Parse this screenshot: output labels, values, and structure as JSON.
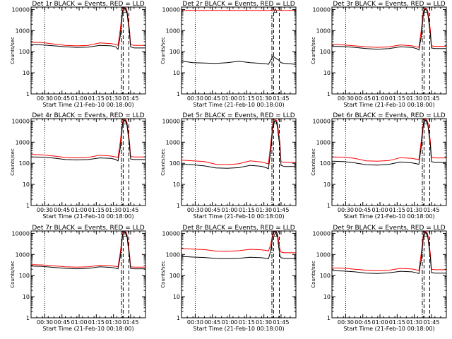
{
  "figure": {
    "ylabel": "Counts/sec",
    "xlabel": "Start Time (21-Feb-10 00:18:00)",
    "x_tick_labels": [
      "00:30",
      "00:45",
      "01:00",
      "01:15",
      "01:30",
      "01:45"
    ],
    "y_tick_labels": [
      "1",
      "10",
      "100",
      "1000",
      "10000"
    ],
    "colors": {
      "events": "#000000",
      "lld": "#ff0000",
      "axes": "#000000"
    }
  },
  "chart_data": [
    {
      "type": "line",
      "title": "Det 1r BLACK = Events, RED = LLD",
      "x_unit": "minutes since 00:18:00",
      "xlim": [
        0,
        100
      ],
      "ylim": [
        1,
        13000
      ],
      "yscale": "log",
      "grid": false,
      "markers": {
        "dotted": 12,
        "dash_dot": 79,
        "dashed": [
          80.5,
          85.5
        ]
      },
      "series": [
        {
          "name": "Events",
          "color": "#000000",
          "x": [
            0,
            10,
            20,
            30,
            40,
            50,
            60,
            70,
            74,
            76,
            78,
            79,
            80,
            81,
            82,
            83,
            84,
            85,
            86,
            87,
            90,
            100
          ],
          "y": [
            220,
            210,
            190,
            170,
            160,
            165,
            200,
            190,
            170,
            130,
            600,
            2000,
            8000,
            11500,
            11500,
            10500,
            6000,
            2000,
            800,
            170,
            150,
            150
          ]
        },
        {
          "name": "LLD",
          "color": "#ff0000",
          "x": [
            0,
            10,
            20,
            30,
            40,
            50,
            60,
            70,
            74,
            76,
            78,
            79,
            80,
            81,
            82,
            83,
            84,
            85,
            86,
            87,
            90,
            100
          ],
          "y": [
            280,
            270,
            230,
            200,
            190,
            200,
            260,
            240,
            220,
            200,
            1200,
            3500,
            9500,
            12000,
            12000,
            11500,
            8000,
            3000,
            1200,
            220,
            200,
            200
          ]
        }
      ]
    },
    {
      "type": "line",
      "title": "Det 2r BLACK = Events, RED = LLD",
      "x_unit": "minutes since 00:18:00",
      "xlim": [
        0,
        100
      ],
      "ylim": [
        1,
        13000
      ],
      "yscale": "log",
      "grid": false,
      "markers": {
        "dotted": 12,
        "dash_dot": 79,
        "dashed": [
          80.5,
          85.5
        ]
      },
      "series": [
        {
          "name": "Events",
          "color": "#000000",
          "x": [
            0,
            5,
            10,
            20,
            30,
            40,
            50,
            60,
            70,
            74,
            76,
            78,
            80,
            85,
            87,
            90,
            95,
            100
          ],
          "y": [
            36,
            33,
            30,
            29,
            28,
            30,
            35,
            30,
            28,
            27,
            25,
            40,
            60,
            40,
            30,
            28,
            27,
            25
          ]
        },
        {
          "name": "LLD",
          "color": "#ff0000",
          "x": [
            0,
            10,
            20,
            30,
            40,
            50,
            60,
            70,
            74,
            76,
            78,
            80,
            85,
            87,
            90,
            100
          ],
          "y": [
            9000,
            9000,
            9000,
            9000,
            9000,
            9000,
            9000,
            9000,
            9000,
            9000,
            9200,
            9500,
            9200,
            9000,
            9000,
            9000
          ]
        }
      ]
    },
    {
      "type": "line",
      "title": "Det 3r BLACK = Events, RED = LLD",
      "x_unit": "minutes since 00:18:00",
      "xlim": [
        0,
        100
      ],
      "ylim": [
        1,
        13000
      ],
      "yscale": "log",
      "grid": false,
      "markers": {
        "dotted": 12,
        "dash_dot": 79,
        "dashed": [
          80.5,
          85.5
        ]
      },
      "series": [
        {
          "name": "Events",
          "color": "#000000",
          "x": [
            0,
            10,
            20,
            30,
            40,
            50,
            60,
            70,
            74,
            76,
            78,
            79,
            80,
            81,
            82,
            83,
            84,
            85,
            86,
            87,
            90,
            100
          ],
          "y": [
            180,
            175,
            160,
            140,
            130,
            140,
            170,
            160,
            140,
            120,
            500,
            1800,
            7000,
            10000,
            10000,
            9000,
            5000,
            1800,
            700,
            150,
            140,
            140
          ]
        },
        {
          "name": "LLD",
          "color": "#ff0000",
          "x": [
            0,
            10,
            20,
            30,
            40,
            50,
            60,
            70,
            74,
            76,
            78,
            79,
            80,
            81,
            82,
            83,
            84,
            85,
            86,
            87,
            90,
            100
          ],
          "y": [
            220,
            210,
            190,
            170,
            160,
            170,
            210,
            190,
            170,
            160,
            1000,
            3000,
            9000,
            11500,
            11500,
            11000,
            7500,
            2800,
            1100,
            190,
            180,
            180
          ]
        }
      ]
    },
    {
      "type": "line",
      "title": "Det 4r BLACK = Events, RED = LLD",
      "x_unit": "minutes since 00:18:00",
      "xlim": [
        0,
        100
      ],
      "ylim": [
        1,
        13000
      ],
      "yscale": "log",
      "grid": false,
      "markers": {
        "dotted": 12,
        "dash_dot": 79,
        "dashed": [
          80.5,
          85.5
        ]
      },
      "series": [
        {
          "name": "Events",
          "color": "#000000",
          "x": [
            0,
            10,
            20,
            30,
            40,
            50,
            60,
            70,
            74,
            76,
            78,
            79,
            80,
            81,
            82,
            83,
            84,
            85,
            86,
            87,
            90,
            100
          ],
          "y": [
            200,
            195,
            175,
            150,
            145,
            150,
            180,
            170,
            150,
            130,
            550,
            1900,
            7500,
            11000,
            11000,
            10000,
            5500,
            1900,
            750,
            160,
            150,
            150
          ]
        },
        {
          "name": "LLD",
          "color": "#ff0000",
          "x": [
            0,
            10,
            20,
            30,
            40,
            50,
            60,
            70,
            74,
            76,
            78,
            79,
            80,
            81,
            82,
            83,
            84,
            85,
            86,
            87,
            90,
            100
          ],
          "y": [
            260,
            250,
            220,
            190,
            180,
            190,
            240,
            220,
            200,
            190,
            1100,
            3300,
            9200,
            12000,
            12000,
            11200,
            7800,
            2900,
            1150,
            210,
            200,
            200
          ]
        }
      ]
    },
    {
      "type": "line",
      "title": "Det 5r BLACK = Events, RED = LLD",
      "x_unit": "minutes since 00:18:00",
      "xlim": [
        0,
        100
      ],
      "ylim": [
        1,
        13000
      ],
      "yscale": "log",
      "grid": false,
      "markers": {
        "dotted": 12,
        "dash_dot": 79,
        "dashed": [
          80.5,
          85.5
        ]
      },
      "series": [
        {
          "name": "Events",
          "color": "#000000",
          "x": [
            0,
            10,
            20,
            30,
            40,
            50,
            60,
            70,
            74,
            76,
            78,
            79,
            80,
            81,
            82,
            83,
            84,
            85,
            86,
            87,
            90,
            100
          ],
          "y": [
            90,
            85,
            75,
            60,
            58,
            62,
            80,
            72,
            62,
            55,
            400,
            1500,
            6500,
            10000,
            10000,
            9000,
            4500,
            1500,
            600,
            80,
            70,
            70
          ]
        },
        {
          "name": "LLD",
          "color": "#ff0000",
          "x": [
            0,
            10,
            20,
            30,
            40,
            50,
            60,
            70,
            74,
            76,
            78,
            79,
            80,
            81,
            82,
            83,
            84,
            85,
            86,
            87,
            90,
            100
          ],
          "y": [
            140,
            130,
            120,
            90,
            85,
            95,
            130,
            115,
            100,
            95,
            900,
            2800,
            8800,
            11500,
            11500,
            11000,
            7000,
            2500,
            1000,
            120,
            110,
            110
          ]
        }
      ]
    },
    {
      "type": "line",
      "title": "Det 6r BLACK = Events, RED = LLD",
      "x_unit": "minutes since 00:18:00",
      "xlim": [
        0,
        100
      ],
      "ylim": [
        1,
        13000
      ],
      "yscale": "log",
      "grid": false,
      "markers": {
        "dotted": 12,
        "dash_dot": 79,
        "dashed": [
          80.5,
          85.5
        ]
      },
      "series": [
        {
          "name": "Events",
          "color": "#000000",
          "x": [
            0,
            10,
            20,
            30,
            40,
            50,
            60,
            70,
            74,
            76,
            78,
            79,
            80,
            81,
            82,
            83,
            84,
            85,
            86,
            87,
            90,
            100
          ],
          "y": [
            125,
            120,
            105,
            85,
            82,
            90,
            115,
            105,
            95,
            90,
            600,
            2000,
            7500,
            11000,
            11000,
            10000,
            5500,
            1900,
            750,
            120,
            110,
            110
          ]
        },
        {
          "name": "LLD",
          "color": "#ff0000",
          "x": [
            0,
            10,
            20,
            30,
            40,
            50,
            60,
            70,
            74,
            76,
            78,
            79,
            80,
            81,
            82,
            83,
            84,
            85,
            86,
            87,
            90,
            100
          ],
          "y": [
            200,
            195,
            170,
            130,
            125,
            135,
            185,
            170,
            155,
            150,
            1100,
            3300,
            9200,
            12000,
            12000,
            11200,
            7800,
            2900,
            1150,
            190,
            180,
            180
          ]
        }
      ]
    },
    {
      "type": "line",
      "title": "Det 7r BLACK = Events, RED = LLD",
      "x_unit": "minutes since 00:18:00",
      "xlim": [
        0,
        100
      ],
      "ylim": [
        1,
        13000
      ],
      "yscale": "log",
      "grid": false,
      "markers": {
        "dotted": 12,
        "dash_dot": 79,
        "dashed": [
          80.5,
          85.5
        ]
      },
      "series": [
        {
          "name": "Events",
          "color": "#000000",
          "x": [
            0,
            10,
            20,
            30,
            40,
            50,
            60,
            70,
            74,
            76,
            78,
            79,
            80,
            81,
            82,
            83,
            84,
            85,
            86,
            87,
            90,
            100
          ],
          "y": [
            280,
            270,
            245,
            220,
            210,
            220,
            260,
            245,
            225,
            210,
            800,
            2400,
            8500,
            11500,
            11500,
            10500,
            6000,
            2000,
            800,
            220,
            210,
            210
          ]
        },
        {
          "name": "LLD",
          "color": "#ff0000",
          "x": [
            0,
            10,
            20,
            30,
            40,
            50,
            60,
            70,
            74,
            76,
            78,
            79,
            80,
            81,
            82,
            83,
            84,
            85,
            86,
            87,
            90,
            100
          ],
          "y": [
            330,
            320,
            290,
            260,
            250,
            260,
            310,
            290,
            270,
            260,
            1300,
            3600,
            9600,
            12200,
            12200,
            11600,
            8000,
            3000,
            1200,
            260,
            250,
            250
          ]
        }
      ]
    },
    {
      "type": "line",
      "title": "Det 8r BLACK = Events, RED = LLD",
      "x_unit": "minutes since 00:18:00",
      "xlim": [
        0,
        100
      ],
      "ylim": [
        1,
        13000
      ],
      "yscale": "log",
      "grid": false,
      "markers": {
        "dotted": 12,
        "dash_dot": 79,
        "dashed": [
          80.5,
          85.5
        ]
      },
      "series": [
        {
          "name": "Events",
          "color": "#000000",
          "x": [
            0,
            5,
            10,
            20,
            30,
            40,
            50,
            60,
            70,
            74,
            76,
            78,
            79,
            80,
            81,
            82,
            83,
            84,
            85,
            86,
            87,
            90,
            100
          ],
          "y": [
            800,
            780,
            750,
            720,
            650,
            630,
            660,
            740,
            700,
            660,
            620,
            1500,
            3500,
            9000,
            12000,
            12000,
            11000,
            6500,
            2200,
            900,
            700,
            650,
            650
          ]
        },
        {
          "name": "LLD",
          "color": "#ff0000",
          "x": [
            0,
            5,
            10,
            20,
            30,
            40,
            50,
            60,
            70,
            74,
            76,
            78,
            79,
            80,
            81,
            82,
            83,
            84,
            85,
            86,
            87,
            90,
            100
          ],
          "y": [
            1900,
            1850,
            1800,
            1700,
            1450,
            1400,
            1500,
            1750,
            1650,
            1550,
            1450,
            3000,
            6000,
            10500,
            12500,
            12500,
            12000,
            9000,
            4000,
            1800,
            1300,
            1200,
            1200
          ]
        }
      ]
    },
    {
      "type": "line",
      "title": "Det 9r BLACK = Events, RED = LLD",
      "x_unit": "minutes since 00:18:00",
      "xlim": [
        0,
        100
      ],
      "ylim": [
        1,
        13000
      ],
      "yscale": "log",
      "grid": false,
      "markers": {
        "dotted": 12,
        "dash_dot": 79,
        "dashed": [
          80.5,
          85.5
        ]
      },
      "series": [
        {
          "name": "Events",
          "color": "#000000",
          "x": [
            0,
            10,
            20,
            30,
            40,
            50,
            60,
            70,
            74,
            76,
            78,
            79,
            80,
            81,
            82,
            83,
            84,
            85,
            86,
            87,
            90,
            100
          ],
          "y": [
            170,
            165,
            150,
            130,
            125,
            135,
            160,
            150,
            135,
            125,
            550,
            1900,
            7500,
            11000,
            11000,
            10000,
            5500,
            1900,
            750,
            140,
            130,
            130
          ]
        },
        {
          "name": "LLD",
          "color": "#ff0000",
          "x": [
            0,
            10,
            20,
            30,
            40,
            50,
            60,
            70,
            74,
            76,
            78,
            79,
            80,
            81,
            82,
            83,
            84,
            85,
            86,
            87,
            90,
            100
          ],
          "y": [
            230,
            225,
            200,
            180,
            170,
            180,
            220,
            205,
            185,
            175,
            1100,
            3200,
            9200,
            12000,
            12000,
            11200,
            7800,
            2900,
            1150,
            200,
            190,
            190
          ]
        }
      ]
    }
  ]
}
